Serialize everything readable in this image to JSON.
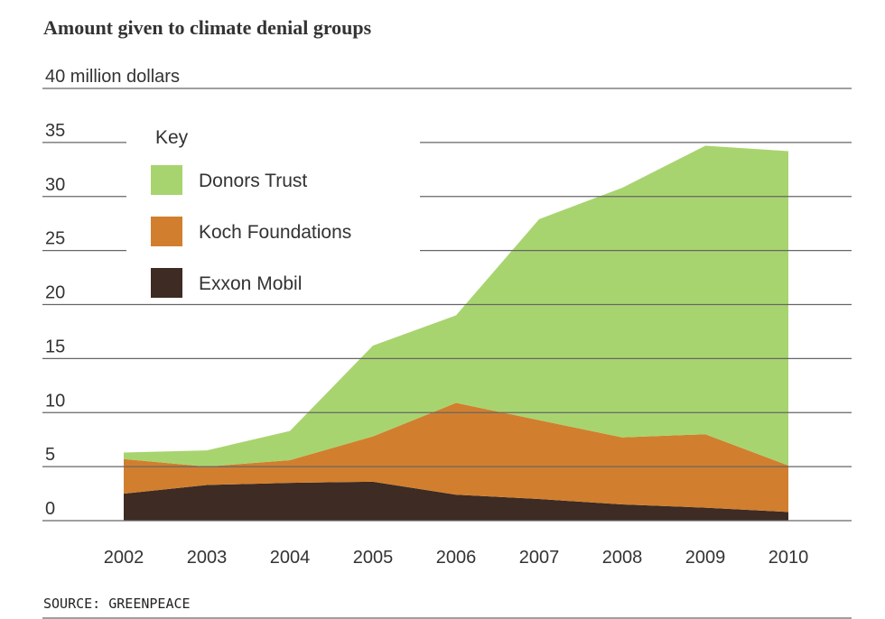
{
  "chart_data": {
    "type": "stacked_area",
    "title": "Amount given to climate denial groups",
    "legend_title": "Key",
    "source": "SOURCE: GREENPEACE",
    "categories": [
      "2002",
      "2003",
      "2004",
      "2005",
      "2006",
      "2007",
      "2008",
      "2009",
      "2010"
    ],
    "series": [
      {
        "name": "Exxon Mobil",
        "color": "#3d2b24",
        "values": [
          2.5,
          3.3,
          3.5,
          3.6,
          2.4,
          2.0,
          1.5,
          1.2,
          0.8
        ]
      },
      {
        "name": "Koch Foundations",
        "color": "#d17f2e",
        "values": [
          3.2,
          1.7,
          2.1,
          4.2,
          8.5,
          7.3,
          6.2,
          6.8,
          4.3
        ]
      },
      {
        "name": "Donors Trust",
        "color": "#a8d46f",
        "values": [
          0.6,
          1.5,
          2.7,
          8.4,
          8.1,
          18.6,
          23.1,
          26.7,
          29.1
        ]
      }
    ],
    "ylim": [
      0,
      40
    ],
    "yticks": [
      0,
      5,
      10,
      15,
      20,
      25,
      30,
      35,
      {
        "value": 40,
        "label": "40 million dollars"
      }
    ],
    "grid": true
  }
}
